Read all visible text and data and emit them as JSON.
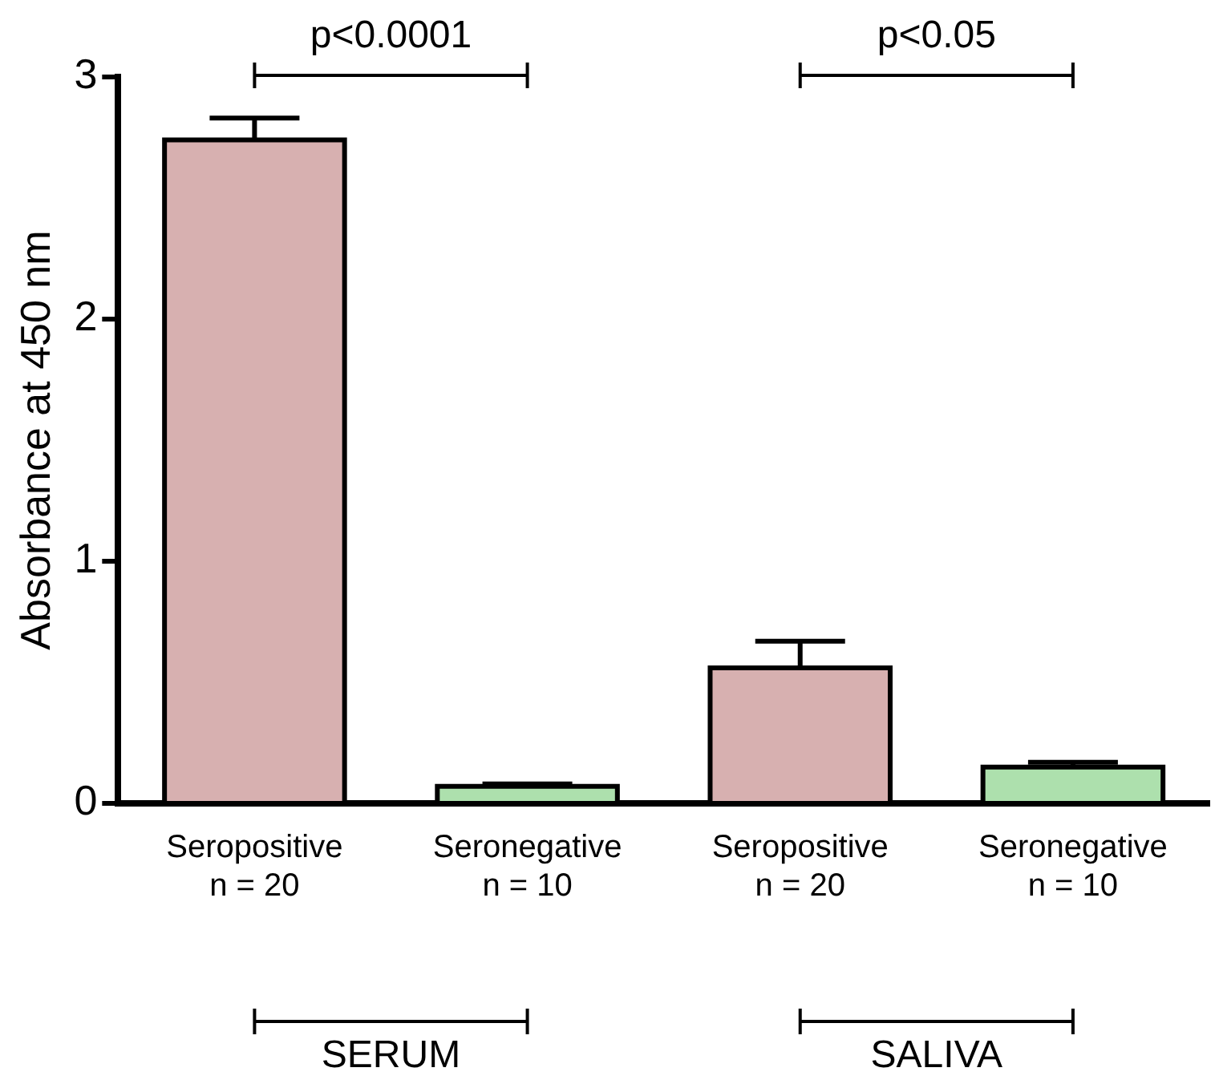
{
  "chart_data": {
    "type": "bar",
    "ylabel": "Absorbance at 450 nm",
    "categories": [
      "Seropositive\nn = 20",
      "Seronegative\nn = 10",
      "Seropositive\nn = 20",
      "Seronegative\nn = 10"
    ],
    "values": [
      2.74,
      0.07,
      0.56,
      0.15
    ],
    "errors": [
      0.09,
      0.01,
      0.11,
      0.02
    ],
    "colors": [
      "#d7b0b0",
      "#ade0ad",
      "#d7b0b0",
      "#ade0ad"
    ],
    "ylim": [
      0,
      3
    ],
    "yticks": [
      0,
      1,
      2,
      3
    ],
    "grid": false,
    "legend": false,
    "annotations": [
      "p<0.0001",
      "p<0.05",
      "SERUM",
      "SALIVA"
    ]
  }
}
